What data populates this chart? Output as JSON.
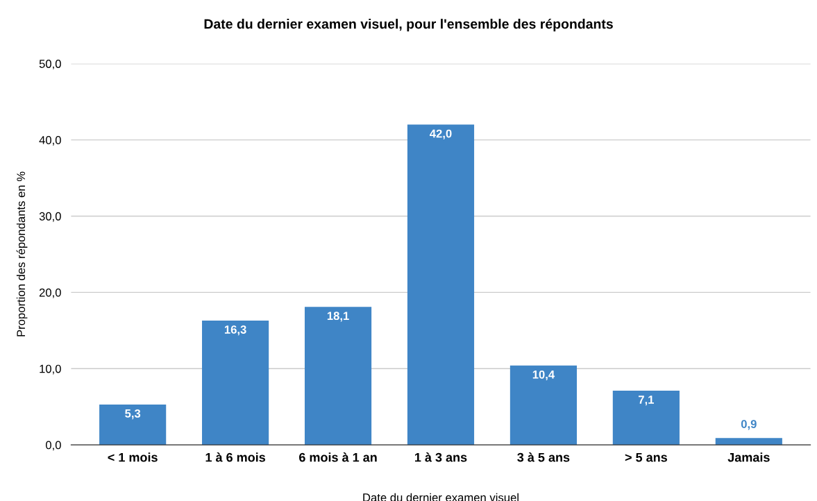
{
  "chart_data": {
    "type": "bar",
    "title": "Date du dernier examen visuel, pour l'ensemble des répondants",
    "xlabel": "Date du dernier examen visuel",
    "ylabel": "Proportion des répondants en %",
    "categories": [
      "< 1 mois",
      "1 à 6 mois",
      "6 mois à 1 an",
      "1 à 3 ans",
      "3 à 5 ans",
      "> 5 ans",
      "Jamais"
    ],
    "values": [
      5.3,
      16.3,
      18.1,
      42.0,
      10.4,
      7.1,
      0.9
    ],
    "value_labels": [
      "5,3",
      "16,3",
      "18,1",
      "42,0",
      "10,4",
      "7,1",
      "0,9"
    ],
    "color": "#3f85c6",
    "ylim": [
      0,
      50
    ],
    "yticks": [
      {
        "value": 0,
        "label": "0,0"
      },
      {
        "value": 10,
        "label": "10,0"
      },
      {
        "value": 20,
        "label": "20,0"
      },
      {
        "value": 30,
        "label": "30,0"
      },
      {
        "value": 40,
        "label": "40,0"
      },
      {
        "value": 50,
        "label": "50,0"
      }
    ],
    "grid": "y"
  }
}
